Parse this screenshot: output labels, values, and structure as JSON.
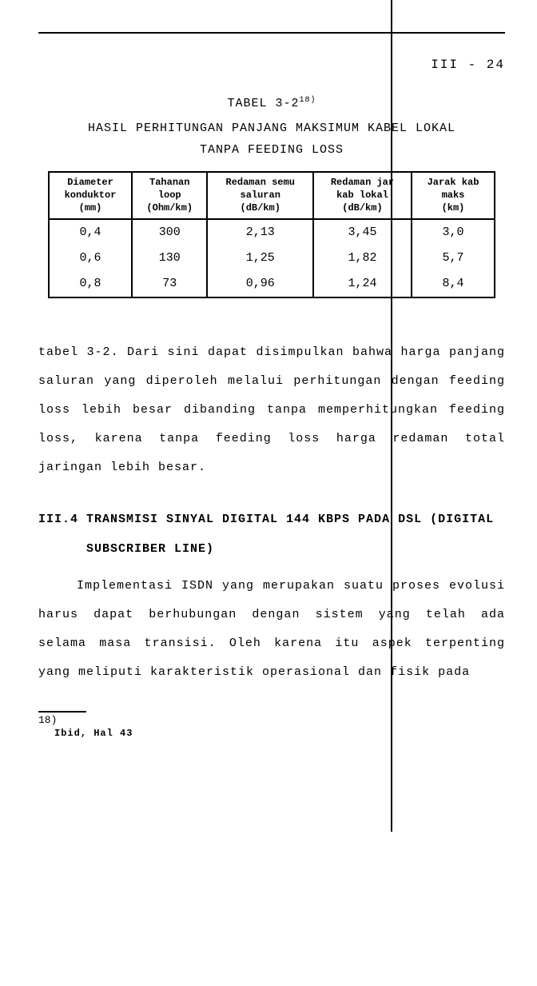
{
  "page_number": "III  -  24",
  "table": {
    "label_prefix": "TABEL 3-2",
    "label_sup": "18)",
    "title": "HASIL PERHITUNGAN PANJANG MAKSIMUM KABEL LOKAL",
    "subtitle": "TANPA FEEDING LOSS",
    "columns": [
      {
        "h1": "Diameter",
        "h2": "konduktor",
        "h3": "(mm)"
      },
      {
        "h1": "Tahanan",
        "h2": "loop",
        "h3": "(Ohm/km)"
      },
      {
        "h1": "Redaman semu",
        "h2": "saluran",
        "h3": "(dB/km)"
      },
      {
        "h1": "Redaman jar",
        "h2": "kab lokal",
        "h3": "(dB/km)"
      },
      {
        "h1": "Jarak kab",
        "h2": "maks",
        "h3": "(km)"
      }
    ],
    "rows": [
      [
        "0,4",
        "300",
        "2,13",
        "3,45",
        "3,0"
      ],
      [
        "0,6",
        "130",
        "1,25",
        "1,82",
        "5,7"
      ],
      [
        "0,8",
        "73",
        "0,96",
        "1,24",
        "8,4"
      ]
    ]
  },
  "paragraph1": "tabel 3-2. Dari sini dapat disimpulkan bahwa harga panjang saluran yang diperoleh melalui perhitungan dengan feeding loss lebih besar dibanding tanpa memperhitungkan feeding loss, karena tanpa feeding loss harga redaman total jaringan lebih besar.",
  "section": {
    "heading": "III.4 TRANSMISI SINYAL DIGITAL 144 KBPS PADA DSL (DIGITAL",
    "heading2": "SUBSCRIBER LINE)"
  },
  "paragraph2": "Implementasi ISDN yang merupakan suatu proses evolusi harus dapat berhubungan dengan sistem yang telah ada selama masa transisi. Oleh karena itu aspek terpenting yang meliputi karakteristik operasional dan  fisik pada",
  "footnote": {
    "num": "18)",
    "text": "Ibid, Hal 43"
  }
}
